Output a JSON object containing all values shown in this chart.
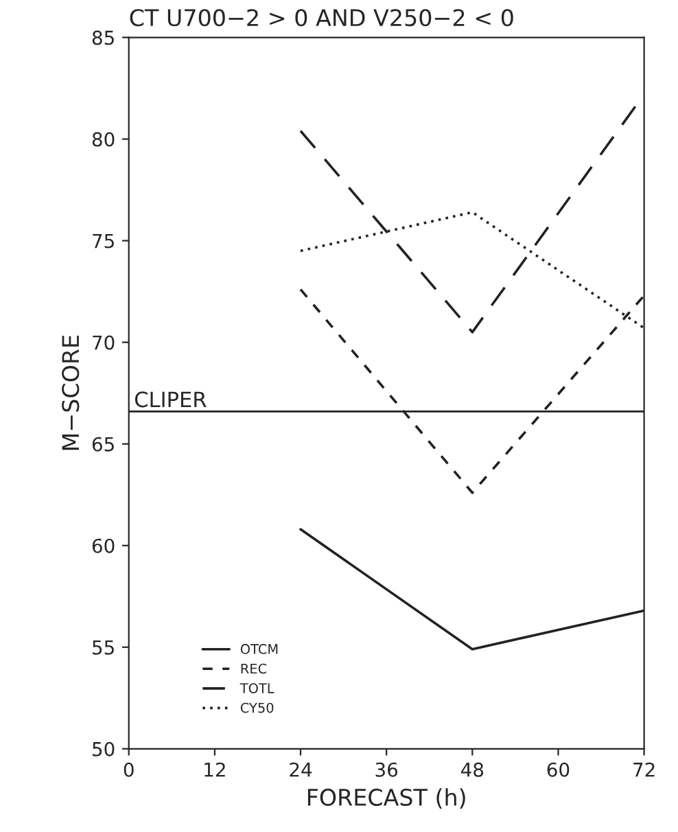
{
  "chart_data": {
    "type": "line",
    "title": "CT U700−2 > 0 AND V250−2 < 0",
    "xlabel": "FORECAST (h)",
    "ylabel": "M−SCORE",
    "x": [
      24,
      48,
      72
    ],
    "series": [
      {
        "name": "OTCM",
        "color": "#222222",
        "values": [
          60.8,
          54.9,
          56.8
        ],
        "line_style": "solid"
      },
      {
        "name": "REC",
        "color": "#222222",
        "values": [
          72.6,
          62.6,
          72.3
        ],
        "line_style": "dashed"
      },
      {
        "name": "TOTL",
        "color": "#222222",
        "values": [
          80.4,
          70.5,
          82.2
        ],
        "line_style": "longdash"
      },
      {
        "name": "CY50",
        "color": "#222222",
        "values": [
          74.5,
          76.4,
          70.7
        ],
        "line_style": "dotted"
      }
    ],
    "ref_lines": [
      {
        "axis": "y",
        "value": 66.6,
        "label": "CLIPER",
        "color": "#222222",
        "line_style": "solid"
      }
    ],
    "xlim": [
      0,
      72
    ],
    "xticks": [
      0,
      12,
      24,
      36,
      48,
      60,
      72
    ],
    "ylim": [
      50,
      85
    ],
    "yticks": [
      50,
      55,
      60,
      65,
      70,
      75,
      80,
      85
    ],
    "grid": false,
    "legend": "bottom left",
    "marker": "none"
  }
}
